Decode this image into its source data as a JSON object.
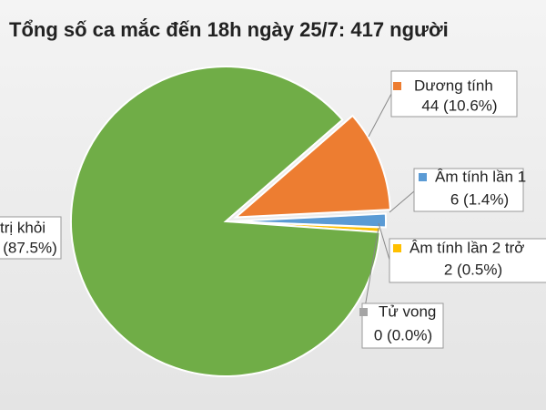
{
  "chart_data": {
    "type": "pie",
    "title": "Tổng số ca mắc đến 18h ngày 25/7: 417 người",
    "categories": [
      "Dương tính",
      "Âm tính lần 1",
      "Âm tính lần 2 trở",
      "Tử vong",
      "trị khỏi"
    ],
    "values": [
      10.6,
      1.4,
      0.5,
      0.0,
      87.5
    ],
    "value_labels": [
      "44 (10.6%)",
      "6 (1.4%)",
      "2 (0.5%)",
      "0 (0.0%)",
      "(87.5%)"
    ],
    "colors": [
      "#ed7d31",
      "#5b9bd5",
      "#ffc000",
      "#a5a5a5",
      "#70ad47"
    ]
  }
}
